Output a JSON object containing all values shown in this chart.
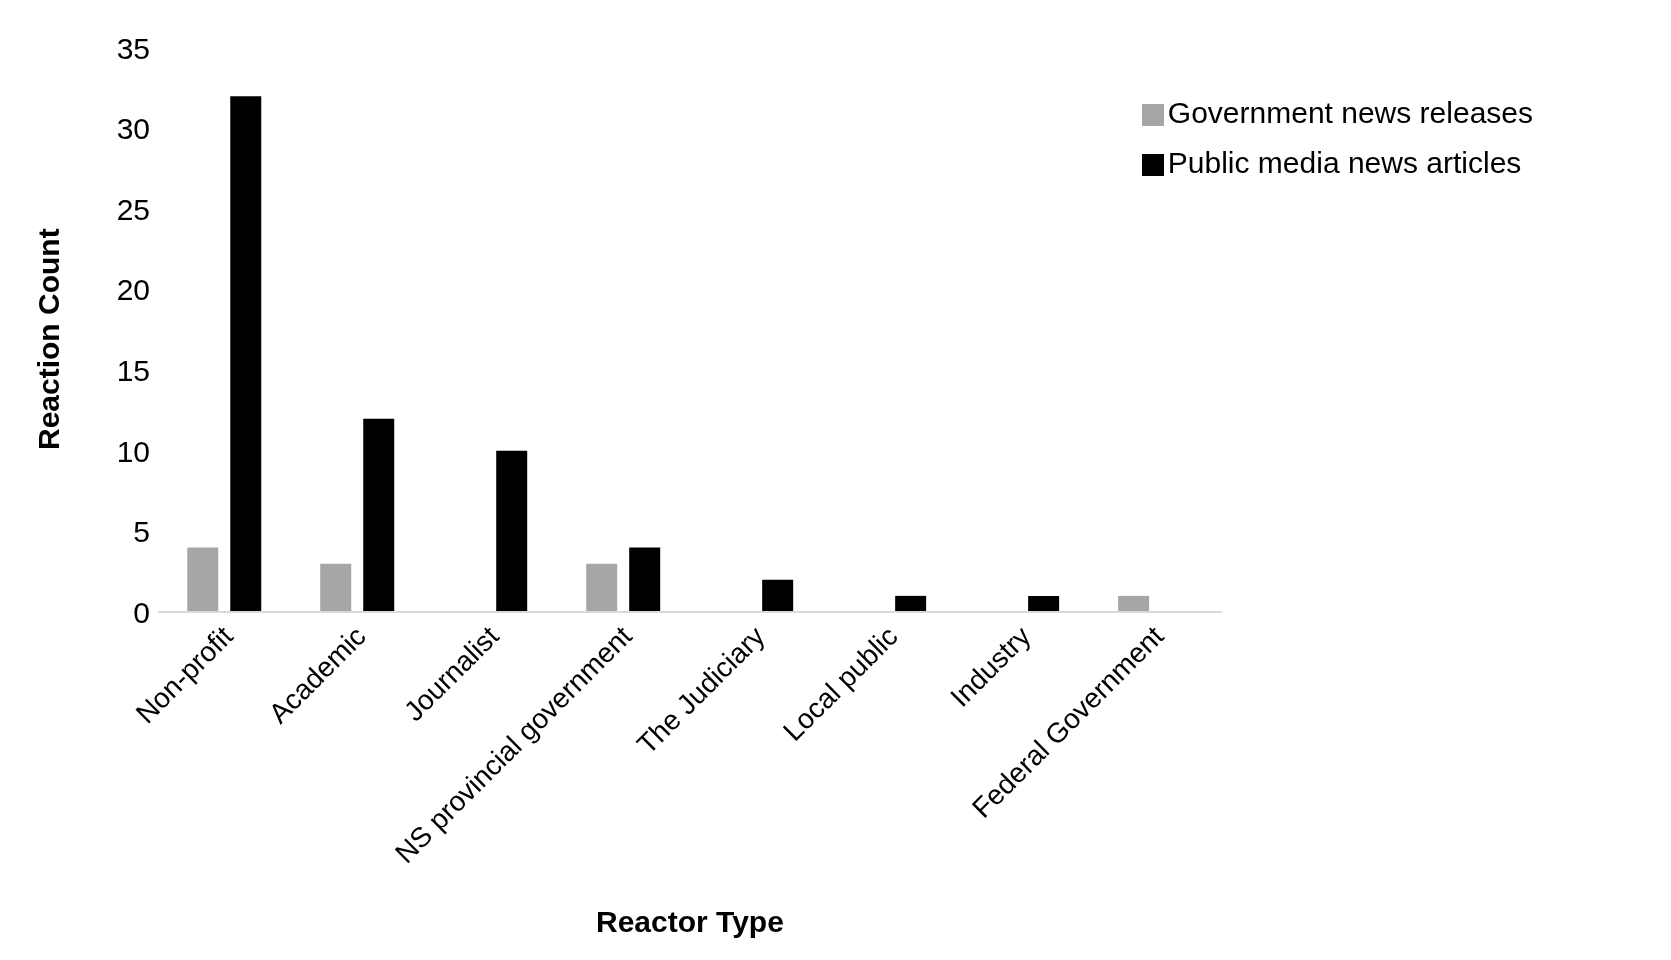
{
  "chart_data": {
    "type": "bar",
    "xlabel": "Reactor Type",
    "ylabel": "Reaction Count",
    "categories": [
      "Non-profit",
      "Academic",
      "Journalist",
      "NS provincial government",
      "The Judiciary",
      "Local public",
      "Industry",
      "Federal Government"
    ],
    "series": [
      {
        "name": "Government news releases",
        "color": "#a6a6a6",
        "values": [
          4,
          3,
          0,
          3,
          0,
          0,
          0,
          1
        ]
      },
      {
        "name": "Public media news articles",
        "color": "#000000",
        "values": [
          32,
          12,
          10,
          4,
          2,
          1,
          1,
          0
        ]
      }
    ],
    "ylim": [
      0,
      35
    ],
    "yticks": [
      0,
      5,
      10,
      15,
      20,
      25,
      30,
      35
    ],
    "grid": false,
    "legend": "top right"
  }
}
